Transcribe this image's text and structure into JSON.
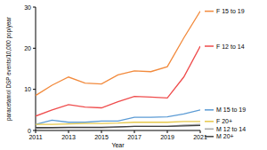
{
  "chart_data": {
    "type": "line",
    "x_label": "Year",
    "y_label": "paracetamol DSP events/10,000 pop/year",
    "x": [
      2011,
      2012,
      2013,
      2014,
      2015,
      2016,
      2017,
      2018,
      2019,
      2020,
      2021
    ],
    "xlim": [
      2011,
      2021
    ],
    "xticks": [
      2011,
      2013,
      2015,
      2017,
      2019,
      2021
    ],
    "ylim": [
      0,
      30
    ],
    "yticks": [
      0,
      10,
      20,
      30
    ],
    "legend": "right",
    "series": [
      {
        "name": "F 15 to 19",
        "color": "#f28a3c",
        "values": [
          8.5,
          11,
          13,
          11.5,
          11.3,
          13.5,
          14.5,
          14.3,
          15.5,
          22.5,
          29
        ]
      },
      {
        "name": "F 12 to 14",
        "color": "#ef4c4c",
        "values": [
          3.5,
          5,
          6.3,
          5.7,
          5.5,
          7,
          8.3,
          8.1,
          7.9,
          13,
          20.5
        ]
      },
      {
        "name": "M 15 to 19",
        "color": "#5b9bd5",
        "values": [
          1.5,
          2.5,
          2,
          2,
          2.3,
          2.3,
          3.2,
          3.2,
          3.3,
          4,
          5
        ]
      },
      {
        "name": "F 20+",
        "color": "#e6c84a",
        "values": [
          1.5,
          1.5,
          1.6,
          1.7,
          1.7,
          1.8,
          2,
          2,
          2,
          2.2,
          2.2
        ]
      },
      {
        "name": "M 12 to 14",
        "color": "#a6a6a6",
        "values": [
          0.5,
          0.6,
          0.7,
          0.6,
          0.6,
          0.8,
          1,
          1,
          1,
          1.3,
          1.5
        ]
      },
      {
        "name": "M 20+",
        "color": "#404040",
        "values": [
          0.7,
          0.7,
          0.8,
          0.8,
          0.8,
          0.9,
          1,
          1,
          1,
          1.1,
          1.2
        ]
      }
    ]
  }
}
